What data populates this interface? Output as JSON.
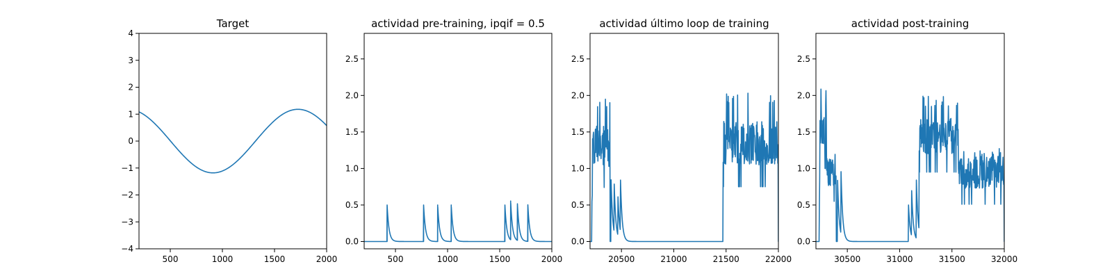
{
  "figure": {
    "line_color": "#1f77b4"
  },
  "chart_data": [
    {
      "type": "line",
      "title": "Target",
      "xlabel": "",
      "ylabel": "",
      "xlim": [
        200,
        2000
      ],
      "ylim": [
        -4,
        4
      ],
      "xticks": [
        500,
        1000,
        1500,
        2000
      ],
      "yticks": [
        -4,
        -3,
        -2,
        -1,
        0,
        1,
        2,
        3,
        4
      ],
      "xtick_labels": [
        "500",
        "1000",
        "1500",
        "2000"
      ],
      "ytick_labels": [
        "−4",
        "−3",
        "−2",
        "−1",
        "0",
        "1",
        "2",
        "3",
        "4"
      ],
      "grid": false,
      "series": [
        {
          "kind": "sine",
          "amplitude": 1.18,
          "period": 1630,
          "min_at": 910,
          "x": [
            200,
            300,
            400,
            500,
            600,
            700,
            800,
            910,
            1000,
            1100,
            1200,
            1300,
            1400,
            1500,
            1600,
            1725,
            1800,
            1900,
            2000
          ],
          "y": [
            1.1,
            0.98,
            0.7,
            0.3,
            -0.15,
            -0.6,
            -1.0,
            -1.18,
            -1.08,
            -0.8,
            -0.4,
            0.1,
            0.55,
            0.9,
            1.12,
            1.18,
            1.1,
            0.85,
            0.52
          ]
        }
      ]
    },
    {
      "type": "line",
      "title": "actividad pre-training, ipqif = 0.5",
      "xlabel": "",
      "ylabel": "",
      "xlim": [
        200,
        2000
      ],
      "ylim": [
        -0.1,
        2.85
      ],
      "xticks": [
        500,
        1000,
        1500,
        2000
      ],
      "yticks": [
        0.0,
        0.5,
        1.0,
        1.5,
        2.0,
        2.5
      ],
      "xtick_labels": [
        "500",
        "1000",
        "1500",
        "2000"
      ],
      "ytick_labels": [
        "0.0",
        "0.5",
        "1.0",
        "1.5",
        "2.0",
        "2.5"
      ],
      "grid": false,
      "series": [
        {
          "kind": "spikes",
          "data_start": 200,
          "data_end": 2000,
          "baseline": 0.0,
          "decay": 18,
          "events": [
            {
              "x": 420,
              "peak": 0.5
            },
            {
              "x": 770,
              "peak": 0.5
            },
            {
              "x": 905,
              "peak": 0.5
            },
            {
              "x": 1035,
              "peak": 0.5
            },
            {
              "x": 1550,
              "peak": 0.5
            },
            {
              "x": 1605,
              "peak": 0.53
            },
            {
              "x": 1670,
              "peak": 0.5
            },
            {
              "x": 1770,
              "peak": 0.5
            }
          ]
        }
      ]
    },
    {
      "type": "line",
      "title": "actividad último loop de training",
      "xlabel": "",
      "ylabel": "",
      "xlim": [
        20200,
        22000
      ],
      "ylim": [
        -0.1,
        2.85
      ],
      "xticks": [
        20500,
        21000,
        21500,
        22000
      ],
      "yticks": [
        0.0,
        0.5,
        1.0,
        1.5,
        2.0,
        2.5
      ],
      "xtick_labels": [
        "20500",
        "21000",
        "21500",
        "22000"
      ],
      "ytick_labels": [
        "0.0",
        "0.5",
        "1.0",
        "1.5",
        "2.0",
        "2.5"
      ],
      "grid": false,
      "series": [
        {
          "kind": "noisy",
          "data_start": 20200,
          "data_end": 22000,
          "seed": 7,
          "high_segments": [
            {
              "start": 20215,
              "end": 20390,
              "level": 1.3,
              "noise": 0.28,
              "peak": 1.95
            },
            {
              "start": 21470,
              "end": 22000,
              "level": 1.35,
              "noise": 0.3,
              "peak": 2.05
            }
          ],
          "decay_spikes": [
            {
              "x": 20400,
              "peak": 0.9
            },
            {
              "x": 20430,
              "peak": 0.7
            },
            {
              "x": 20465,
              "peak": 0.6
            },
            {
              "x": 20490,
              "peak": 0.75
            }
          ],
          "decay": 16,
          "baseline": 0.0
        }
      ]
    },
    {
      "type": "line",
      "title": "actividad post-training",
      "xlabel": "",
      "ylabel": "",
      "xlim": [
        30200,
        32000
      ],
      "ylim": [
        -0.1,
        2.85
      ],
      "xticks": [
        30500,
        31000,
        31500,
        32000
      ],
      "yticks": [
        0.0,
        0.5,
        1.0,
        1.5,
        2.0,
        2.5
      ],
      "xtick_labels": [
        "30500",
        "31000",
        "31500",
        "32000"
      ],
      "ytick_labels": [
        "0.0",
        "0.5",
        "1.0",
        "1.5",
        "2.0",
        "2.5"
      ],
      "grid": false,
      "series": [
        {
          "kind": "noisy",
          "data_start": 30200,
          "data_end": 32000,
          "seed": 23,
          "high_segments": [
            {
              "start": 30230,
              "end": 30300,
              "level": 1.6,
              "noise": 0.3,
              "peak": 2.15
            },
            {
              "start": 30300,
              "end": 30395,
              "level": 0.95,
              "noise": 0.2,
              "peak": 1.2
            },
            {
              "start": 31185,
              "end": 31560,
              "level": 1.45,
              "noise": 0.25,
              "peak": 2.0
            },
            {
              "start": 31560,
              "end": 32000,
              "level": 0.95,
              "noise": 0.22,
              "peak": 1.3
            }
          ],
          "decay_spikes": [
            {
              "x": 30405,
              "peak": 0.95
            },
            {
              "x": 30440,
              "peak": 0.85
            },
            {
              "x": 31085,
              "peak": 0.5
            },
            {
              "x": 31115,
              "peak": 0.62
            },
            {
              "x": 31160,
              "peak": 0.8
            }
          ],
          "decay": 16,
          "baseline": 0.0
        }
      ]
    }
  ]
}
